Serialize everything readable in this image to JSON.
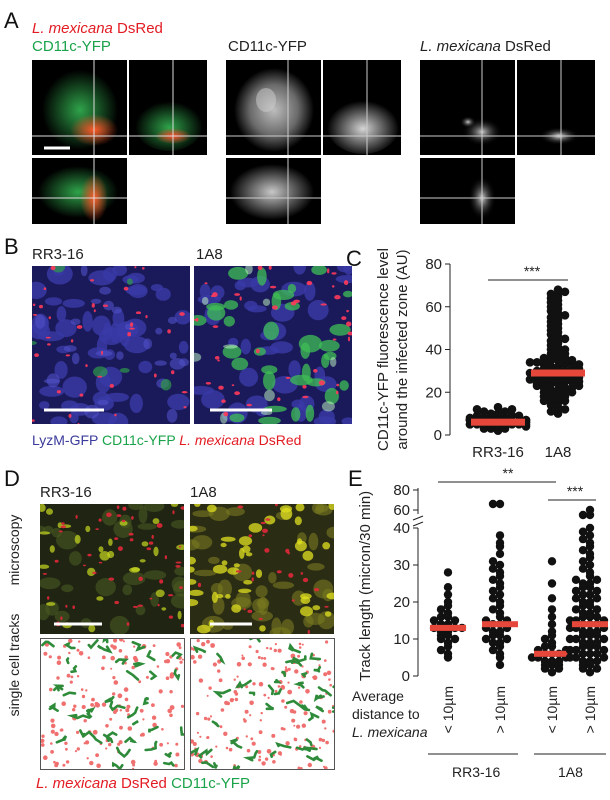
{
  "labels": {
    "A": "A",
    "B": "B",
    "C": "C",
    "D": "D",
    "E": "E"
  },
  "panelA": {
    "legend_species": "L. mexicana",
    "legend_dsred": " DsRed",
    "legend_yfp": "CD11c-YFP",
    "title_yfp": "CD11c-YFP",
    "title_species": "L. mexicana",
    "title_dsred": " DsRed"
  },
  "panelB": {
    "left_title": "RR3-16",
    "right_title": "1A8",
    "legend_lyzm": "LyzM-GFP",
    "legend_cd11c": " CD11c-YFP ",
    "legend_species": "L. mexicana",
    "legend_dsred": " DsRed"
  },
  "panelD": {
    "left_title": "RR3-16",
    "right_title": "1A8",
    "row_microscopy": "microscopy",
    "row_tracks": "single cell tracks",
    "legend_species": "L. mexicana",
    "legend_dsred": " DsRed ",
    "legend_cd11c": "CD11c-YFP"
  },
  "panelE_labels": {
    "avg_line1": "Average",
    "avg_line2": "distance to",
    "avg_line3": "L. mexicana",
    "group1": "RR3-16",
    "group2": "1A8"
  },
  "chart_data": [
    {
      "id": "C",
      "type": "scatter",
      "ylabel": "CD11c-YFP fluorescence level around the infected zone (AU)",
      "ylabel_line1": "CD11c-YFP fluorescence level",
      "ylabel_line2": "around the infected zone (AU)",
      "ylim": [
        0,
        80
      ],
      "yticks": [
        0,
        20,
        40,
        60,
        80
      ],
      "categories": [
        "RR3-16",
        "1A8"
      ],
      "means": [
        6,
        29
      ],
      "significance": "***",
      "colors": {
        "points": "#111111",
        "mean": "#e5473b"
      },
      "series": [
        {
          "values": [
            2,
            3,
            3,
            4,
            4,
            4,
            5,
            5,
            5,
            5,
            5,
            6,
            6,
            6,
            6,
            6,
            6,
            6,
            7,
            7,
            7,
            7,
            7,
            8,
            8,
            8,
            8,
            9,
            9,
            9,
            10,
            10,
            11,
            11,
            12,
            12,
            13,
            4,
            5,
            6,
            7,
            8,
            5,
            6,
            7,
            3
          ]
        },
        {
          "values": [
            10,
            11,
            12,
            13,
            14,
            15,
            15,
            16,
            16,
            17,
            17,
            18,
            18,
            19,
            19,
            20,
            20,
            20,
            21,
            21,
            22,
            22,
            22,
            23,
            23,
            24,
            24,
            25,
            25,
            25,
            26,
            26,
            26,
            27,
            27,
            27,
            28,
            28,
            28,
            29,
            29,
            29,
            30,
            30,
            30,
            31,
            31,
            32,
            32,
            33,
            33,
            34,
            34,
            35,
            35,
            36,
            36,
            37,
            38,
            38,
            39,
            40,
            40,
            41,
            42,
            43,
            44,
            45,
            46,
            47,
            48,
            49,
            50,
            51,
            52,
            53,
            54,
            55,
            56,
            57,
            58,
            59,
            60,
            61,
            62,
            63,
            64,
            65,
            66,
            67,
            68,
            27,
            28,
            29,
            30,
            31,
            24,
            25,
            26,
            33,
            34,
            35
          ]
        }
      ]
    },
    {
      "id": "E",
      "type": "scatter",
      "ylabel": "Track length (micron/30 min)",
      "ylim": [
        0,
        80
      ],
      "yticks_lower": [
        0,
        10,
        20,
        30,
        40
      ],
      "yticks_upper": [
        60,
        80
      ],
      "categories": [
        "< 10µm",
        "> 10µm",
        "< 10µm",
        "> 10µm"
      ],
      "means": [
        13,
        14,
        6,
        14
      ],
      "significance": [
        {
          "from": 0,
          "to": 2,
          "label": "**"
        },
        {
          "from": 2,
          "to": 3,
          "label": "***"
        }
      ],
      "colors": {
        "points": "#111111",
        "mean": "#e5473b"
      },
      "series": [
        {
          "values": [
            5,
            6,
            7,
            8,
            9,
            10,
            10,
            11,
            11,
            12,
            12,
            13,
            13,
            13,
            14,
            14,
            15,
            15,
            16,
            16,
            17,
            18,
            19,
            20,
            22,
            24,
            28
          ]
        },
        {
          "values": [
            3,
            5,
            6,
            7,
            8,
            9,
            9,
            10,
            10,
            11,
            11,
            12,
            12,
            13,
            13,
            14,
            14,
            15,
            15,
            16,
            17,
            18,
            19,
            20,
            21,
            22,
            23,
            24,
            25,
            26,
            27,
            28,
            29,
            30,
            31,
            33,
            35,
            36,
            38,
            75,
            75
          ]
        },
        {
          "values": [
            1,
            2,
            2,
            3,
            3,
            3,
            4,
            4,
            4,
            5,
            5,
            5,
            6,
            6,
            6,
            7,
            7,
            8,
            8,
            9,
            10,
            11,
            12,
            14,
            16,
            18,
            21,
            25,
            31
          ]
        },
        {
          "values": [
            1,
            2,
            2,
            3,
            3,
            4,
            4,
            4,
            5,
            5,
            5,
            6,
            6,
            6,
            7,
            7,
            7,
            8,
            8,
            8,
            9,
            9,
            9,
            10,
            10,
            10,
            11,
            11,
            11,
            12,
            12,
            12,
            13,
            13,
            13,
            14,
            14,
            14,
            15,
            15,
            15,
            16,
            16,
            16,
            17,
            17,
            18,
            18,
            19,
            19,
            20,
            20,
            21,
            21,
            22,
            22,
            23,
            23,
            24,
            24,
            25,
            25,
            26,
            26,
            27,
            28,
            29,
            30,
            31,
            32,
            33,
            34,
            35,
            36,
            37,
            38,
            39,
            40,
            55,
            55,
            60
          ]
        }
      ]
    }
  ]
}
